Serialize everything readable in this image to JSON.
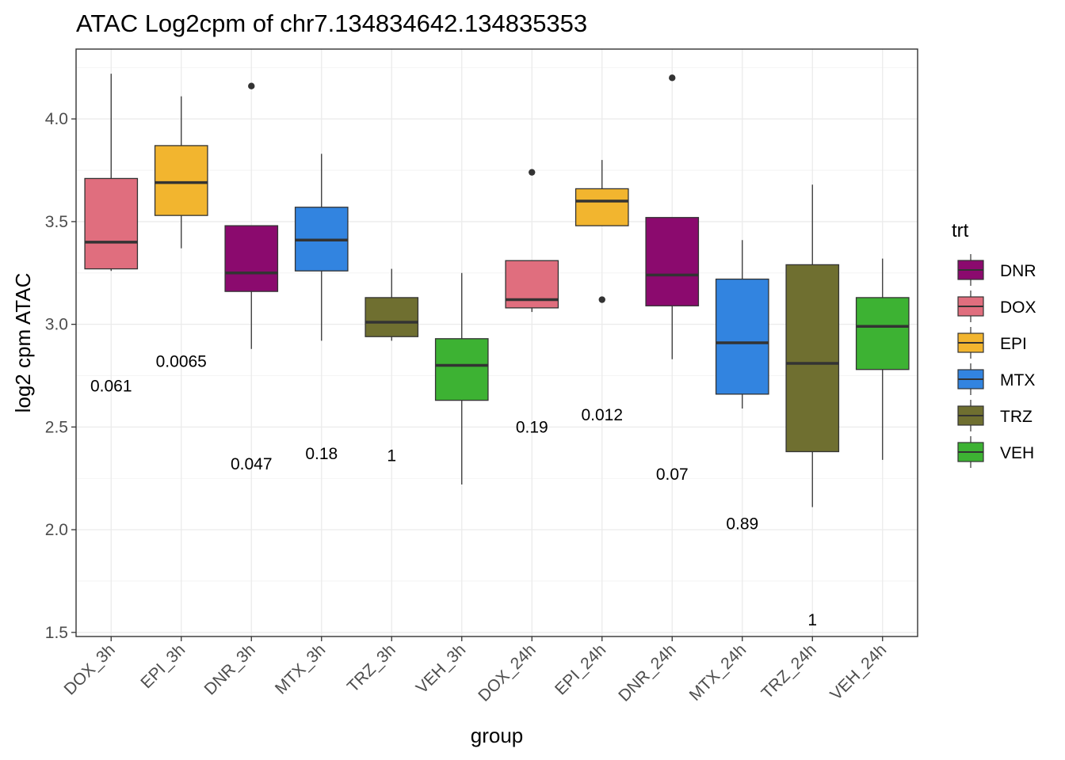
{
  "chart_data": {
    "type": "box",
    "title": "ATAC Log2cpm of chr7.134834642.134835353",
    "xlabel": "group",
    "ylabel": "log2 cpm ATAC",
    "ylim": [
      1.48,
      4.34
    ],
    "yticks": [
      1.5,
      2.0,
      2.5,
      3.0,
      3.5,
      4.0
    ],
    "grid": true,
    "legend": {
      "title": "trt",
      "position": "right",
      "entries": [
        {
          "label": "DNR",
          "color": "#8B0A6E"
        },
        {
          "label": "DOX",
          "color": "#E06E7E"
        },
        {
          "label": "EPI",
          "color": "#F2B52F"
        },
        {
          "label": "MTX",
          "color": "#3284E0"
        },
        {
          "label": "TRZ",
          "color": "#6F6F30"
        },
        {
          "label": "VEH",
          "color": "#3DB233"
        }
      ]
    },
    "groups": [
      {
        "name": "DOX_3h",
        "trt": "DOX",
        "whisker_low": 3.26,
        "q1": 3.27,
        "median": 3.4,
        "q3": 3.71,
        "whisker_high": 4.22,
        "outliers": [],
        "pvalue": "0.061",
        "pvalue_y": 2.7
      },
      {
        "name": "EPI_3h",
        "trt": "EPI",
        "whisker_low": 3.37,
        "q1": 3.53,
        "median": 3.69,
        "q3": 3.87,
        "whisker_high": 4.11,
        "outliers": [],
        "pvalue": "0.0065",
        "pvalue_y": 2.82
      },
      {
        "name": "DNR_3h",
        "trt": "DNR",
        "whisker_low": 2.88,
        "q1": 3.16,
        "median": 3.25,
        "q3": 3.48,
        "whisker_high": 3.48,
        "outliers": [
          4.16
        ],
        "pvalue": "0.047",
        "pvalue_y": 2.32
      },
      {
        "name": "MTX_3h",
        "trt": "MTX",
        "whisker_low": 2.92,
        "q1": 3.26,
        "median": 3.41,
        "q3": 3.57,
        "whisker_high": 3.83,
        "outliers": [],
        "pvalue": "0.18",
        "pvalue_y": 2.37
      },
      {
        "name": "TRZ_3h",
        "trt": "TRZ",
        "whisker_low": 2.92,
        "q1": 2.94,
        "median": 3.01,
        "q3": 3.13,
        "whisker_high": 3.27,
        "outliers": [],
        "pvalue": "1",
        "pvalue_y": 2.36
      },
      {
        "name": "VEH_3h",
        "trt": "VEH",
        "whisker_low": 2.22,
        "q1": 2.63,
        "median": 2.8,
        "q3": 2.93,
        "whisker_high": 3.25,
        "outliers": [],
        "pvalue": "",
        "pvalue_y": null
      },
      {
        "name": "DOX_24h",
        "trt": "DOX",
        "whisker_low": 3.06,
        "q1": 3.08,
        "median": 3.12,
        "q3": 3.31,
        "whisker_high": 3.31,
        "outliers": [
          3.74
        ],
        "pvalue": "0.19",
        "pvalue_y": 2.5
      },
      {
        "name": "EPI_24h",
        "trt": "EPI",
        "whisker_low": 3.48,
        "q1": 3.48,
        "median": 3.6,
        "q3": 3.66,
        "whisker_high": 3.8,
        "outliers": [
          3.12
        ],
        "pvalue": "0.012",
        "pvalue_y": 2.56
      },
      {
        "name": "DNR_24h",
        "trt": "DNR",
        "whisker_low": 2.83,
        "q1": 3.09,
        "median": 3.24,
        "q3": 3.52,
        "whisker_high": 3.52,
        "outliers": [
          4.2
        ],
        "pvalue": "0.07",
        "pvalue_y": 2.27
      },
      {
        "name": "MTX_24h",
        "trt": "MTX",
        "whisker_low": 2.59,
        "q1": 2.66,
        "median": 2.91,
        "q3": 3.22,
        "whisker_high": 3.41,
        "outliers": [],
        "pvalue": "0.89",
        "pvalue_y": 2.03
      },
      {
        "name": "TRZ_24h",
        "trt": "TRZ",
        "whisker_low": 2.11,
        "q1": 2.38,
        "median": 2.81,
        "q3": 3.29,
        "whisker_high": 3.68,
        "outliers": [],
        "pvalue": "1",
        "pvalue_y": 1.56
      },
      {
        "name": "VEH_24h",
        "trt": "VEH",
        "whisker_low": 2.34,
        "q1": 2.78,
        "median": 2.99,
        "q3": 3.13,
        "whisker_high": 3.32,
        "outliers": [],
        "pvalue": "",
        "pvalue_y": null
      }
    ]
  }
}
